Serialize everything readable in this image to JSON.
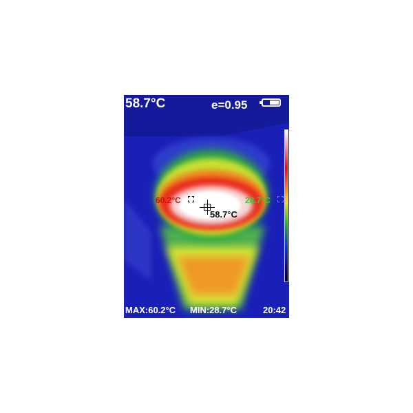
{
  "header": {
    "spot_temperature": "58.7°C",
    "emissivity": "e=0.95",
    "battery_icon": "battery-icon"
  },
  "markers": {
    "max_temp": "60.2°C",
    "min_temp": "28.7°C",
    "center_temp": "58.7°C"
  },
  "footer": {
    "max": "MAX:60.2°C",
    "min": "MIN:28.7°C",
    "time": "20:42"
  },
  "colors": {
    "max_marker": "#c81010",
    "min_marker": "#30d030",
    "background": "#1a1fb8"
  }
}
